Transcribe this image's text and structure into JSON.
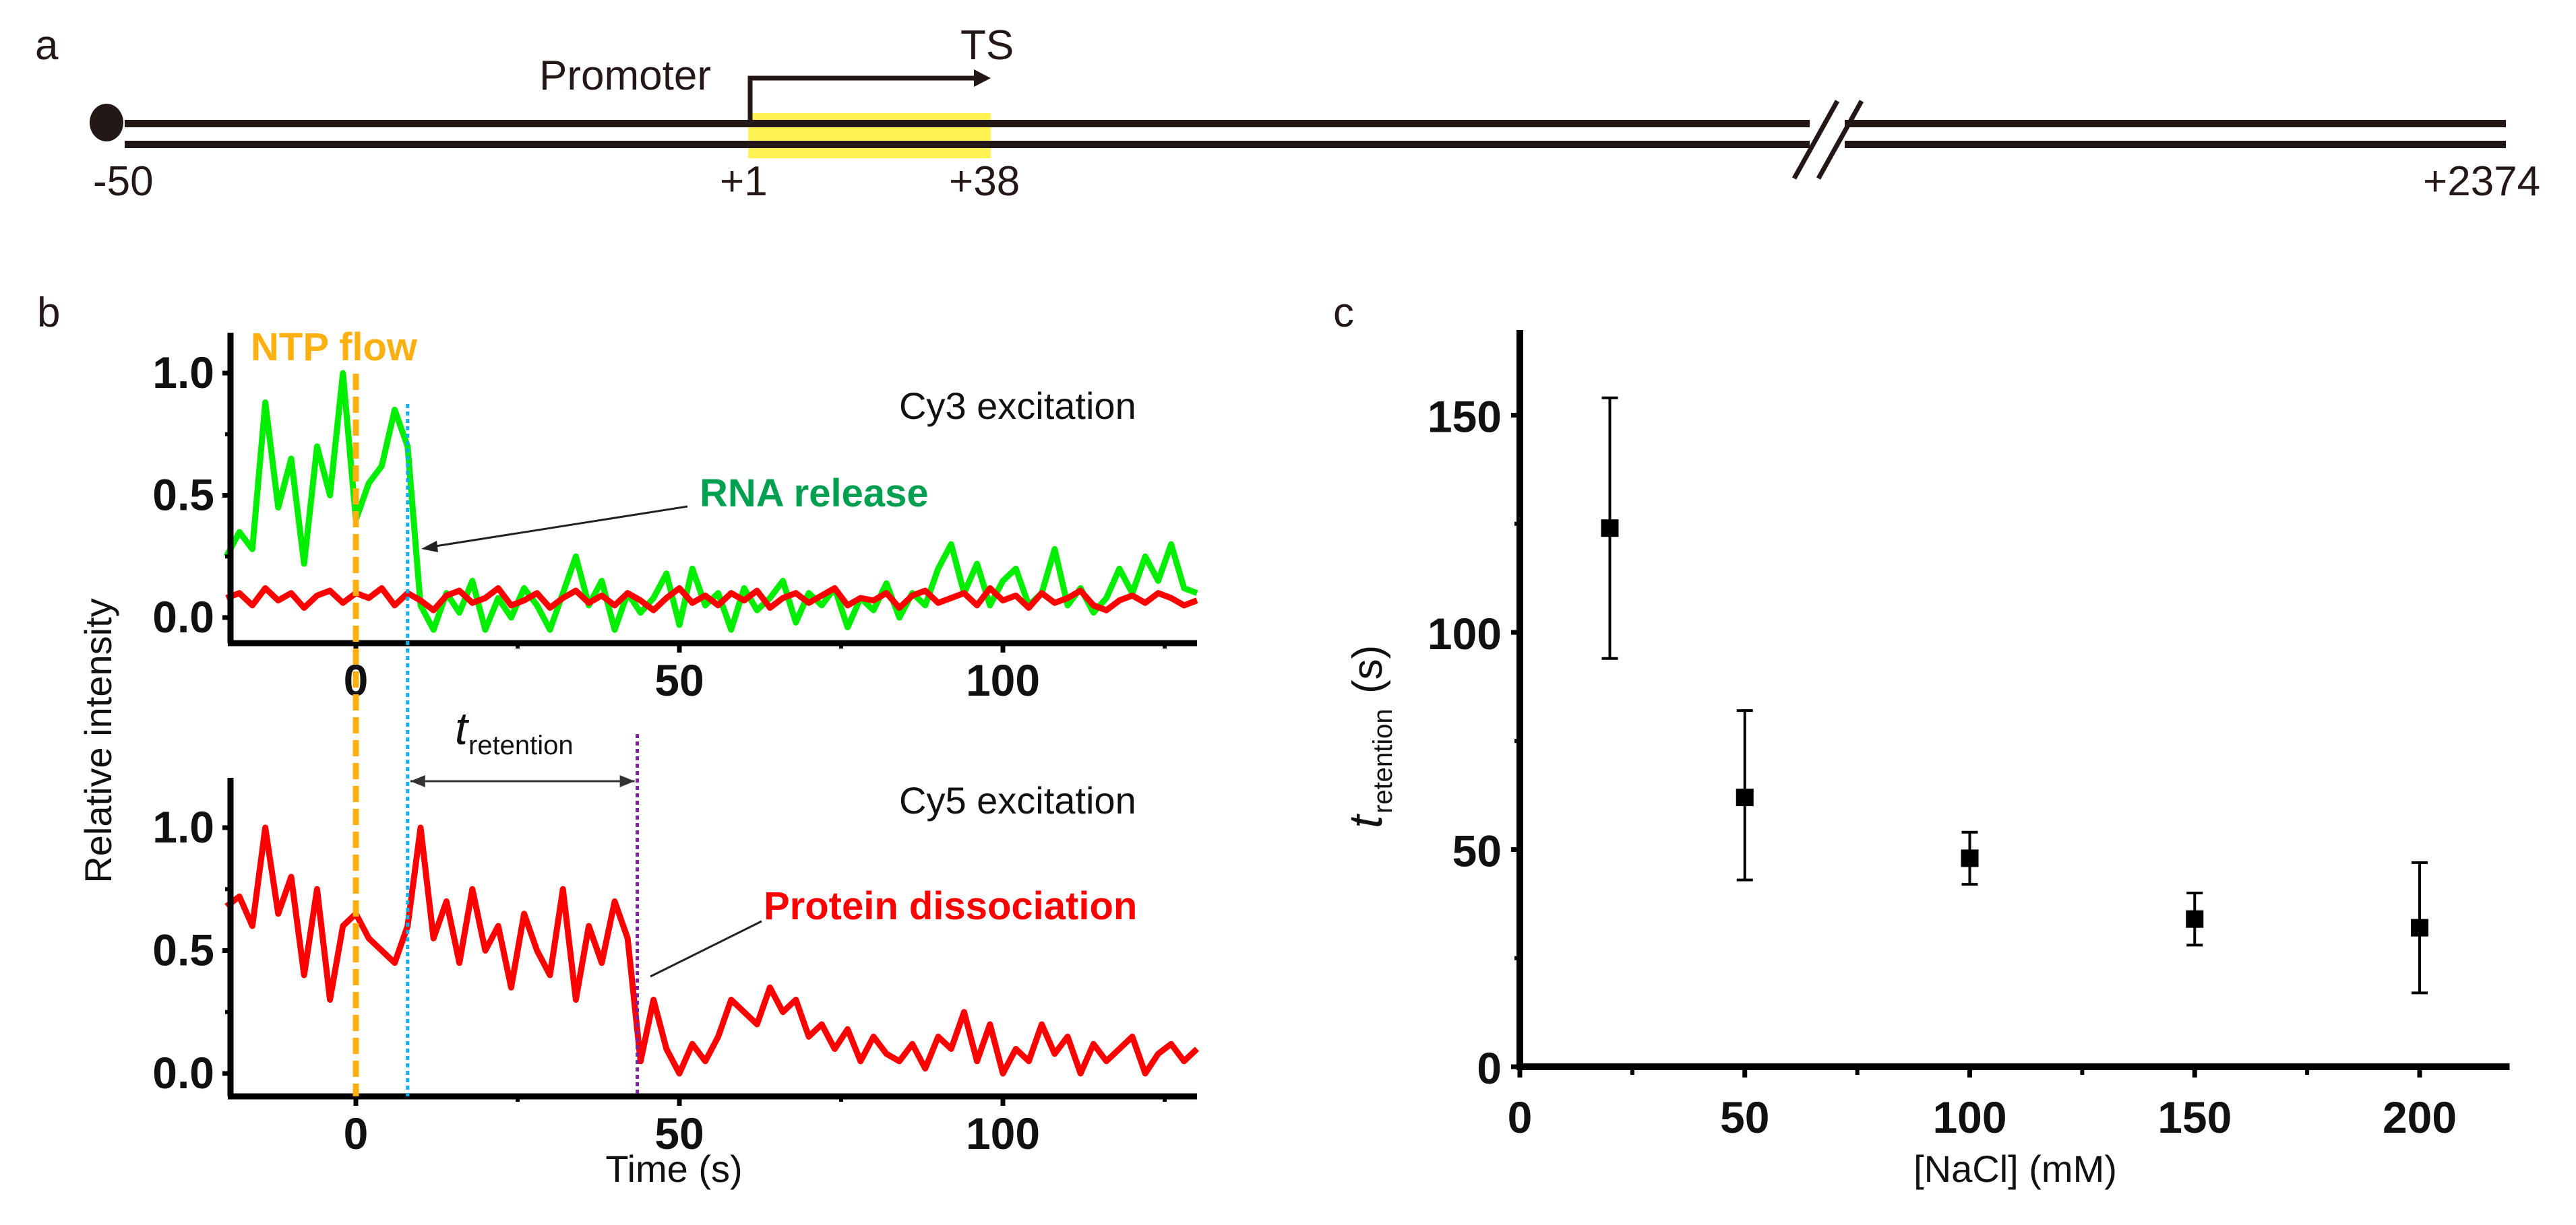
{
  "panel_a": {
    "letter": "a",
    "promoter_label": "Promoter",
    "ts_label": "TS",
    "positions": [
      "-50",
      "+1",
      "+38",
      "+2374"
    ],
    "highlight_color": "#fff353"
  },
  "panel_b": {
    "letter": "b",
    "ylabel": "Relative intensity",
    "xlabel": "Time (s)",
    "ntp_label": "NTP flow",
    "cy3_label": "Cy3 excitation",
    "cy5_label": "Cy5 excitation",
    "rna_label": "RNA release",
    "protein_label": "Protein dissociation",
    "t_label": "t",
    "t_sub": "retention",
    "colors": {
      "green": "#00ee00",
      "red": "#ff0000",
      "orange": "#ffb010",
      "blue": "#10b0f0",
      "purple": "#8020a0",
      "rna_text": "#00a050",
      "ntp_text": "#ffb010"
    }
  },
  "chart_data": [
    {
      "type": "line",
      "title": "Cy3 excitation",
      "xlabel": "Time (s)",
      "ylabel": "Relative intensity",
      "xlim": [
        -20,
        130
      ],
      "ylim": [
        -0.1,
        1.2
      ],
      "xticks": [
        "0",
        "50",
        "100"
      ],
      "yticks": [
        "0.0",
        "0.5",
        "1.0"
      ],
      "x_start": -20,
      "x_step": 2,
      "series": [
        {
          "name": "Cy3 (green)",
          "values": [
            0.25,
            0.35,
            0.28,
            0.88,
            0.45,
            0.65,
            0.22,
            0.7,
            0.5,
            1.0,
            0.4,
            0.55,
            0.62,
            0.85,
            0.7,
            0.05,
            -0.05,
            0.1,
            0.02,
            0.15,
            -0.05,
            0.08,
            0.0,
            0.12,
            0.05,
            -0.05,
            0.1,
            0.25,
            0.05,
            0.15,
            -0.05,
            0.1,
            0.02,
            0.08,
            0.18,
            -0.03,
            0.2,
            0.05,
            0.1,
            -0.05,
            0.12,
            0.03,
            0.08,
            0.15,
            -0.02,
            0.1,
            0.05,
            0.12,
            -0.04,
            0.08,
            0.03,
            0.14,
            0.0,
            0.1,
            0.05,
            0.2,
            0.3,
            0.1,
            0.22,
            0.05,
            0.15,
            0.2,
            0.05,
            0.1,
            0.28,
            0.05,
            0.12,
            0.02,
            0.08,
            0.2,
            0.1,
            0.25,
            0.15,
            0.3,
            0.12,
            0.1
          ]
        },
        {
          "name": "Cy5 (red)",
          "values": [
            0.08,
            0.1,
            0.05,
            0.12,
            0.07,
            0.1,
            0.04,
            0.09,
            0.11,
            0.06,
            0.1,
            0.08,
            0.12,
            0.05,
            0.1,
            0.07,
            0.03,
            0.09,
            0.11,
            0.06,
            0.08,
            0.12,
            0.05,
            0.07,
            0.1,
            0.04,
            0.08,
            0.11,
            0.06,
            0.09,
            0.05,
            0.1,
            0.07,
            0.03,
            0.08,
            0.12,
            0.06,
            0.09,
            0.05,
            0.1,
            0.07,
            0.11,
            0.04,
            0.08,
            0.1,
            0.06,
            0.09,
            0.12,
            0.05,
            0.08,
            0.07,
            0.1,
            0.04,
            0.09,
            0.11,
            0.06,
            0.08,
            0.1,
            0.05,
            0.12,
            0.07,
            0.09,
            0.04,
            0.1,
            0.06,
            0.08,
            0.11,
            0.05,
            0.03,
            0.07,
            0.09,
            0.06,
            0.1,
            0.08,
            0.05,
            0.07
          ]
        }
      ],
      "markers": {
        "ntp_flow": 0,
        "rna_release": 8
      }
    },
    {
      "type": "line",
      "title": "Cy5 excitation",
      "xlabel": "Time (s)",
      "ylabel": "Relative intensity",
      "xlim": [
        -20,
        130
      ],
      "ylim": [
        -0.1,
        1.2
      ],
      "xticks": [
        "0",
        "50",
        "100"
      ],
      "yticks": [
        "0.0",
        "0.5",
        "1.0"
      ],
      "x_start": -20,
      "x_step": 2,
      "series": [
        {
          "name": "Cy5 (red)",
          "values": [
            0.68,
            0.72,
            0.6,
            1.0,
            0.65,
            0.8,
            0.4,
            0.75,
            0.3,
            0.6,
            0.65,
            0.55,
            0.5,
            0.45,
            0.6,
            1.0,
            0.55,
            0.7,
            0.45,
            0.75,
            0.5,
            0.6,
            0.35,
            0.65,
            0.5,
            0.4,
            0.75,
            0.3,
            0.6,
            0.45,
            0.7,
            0.55,
            0.05,
            0.3,
            0.1,
            0.0,
            0.12,
            0.05,
            0.15,
            0.3,
            0.25,
            0.2,
            0.35,
            0.25,
            0.3,
            0.15,
            0.2,
            0.1,
            0.18,
            0.05,
            0.15,
            0.08,
            0.05,
            0.12,
            0.02,
            0.15,
            0.1,
            0.25,
            0.05,
            0.2,
            0.0,
            0.1,
            0.05,
            0.2,
            0.08,
            0.15,
            0.0,
            0.12,
            0.05,
            0.1,
            0.15,
            0.0,
            0.08,
            0.12,
            0.05,
            0.1
          ]
        }
      ],
      "markers": {
        "ntp_flow": 0,
        "rna_release": 8,
        "protein_dissociation": 43.5
      }
    },
    {
      "type": "scatter",
      "letter": "c",
      "xlabel": "[NaCl] (mM)",
      "ylabel_main": "t",
      "ylabel_sub": "retention",
      "ylabel_unit": "(s)",
      "xlim": [
        0,
        220
      ],
      "ylim": [
        0,
        170
      ],
      "xticks": [
        "0",
        "50",
        "100",
        "150",
        "200"
      ],
      "yticks": [
        "0",
        "50",
        "100",
        "150"
      ],
      "points": [
        {
          "x": 20,
          "y": 124,
          "err_low": 94,
          "err_high": 154
        },
        {
          "x": 50,
          "y": 62,
          "err_low": 43,
          "err_high": 82
        },
        {
          "x": 100,
          "y": 48,
          "err_low": 42,
          "err_high": 54
        },
        {
          "x": 150,
          "y": 34,
          "err_low": 28,
          "err_high": 40
        },
        {
          "x": 200,
          "y": 32,
          "err_low": 17,
          "err_high": 47
        }
      ]
    }
  ]
}
